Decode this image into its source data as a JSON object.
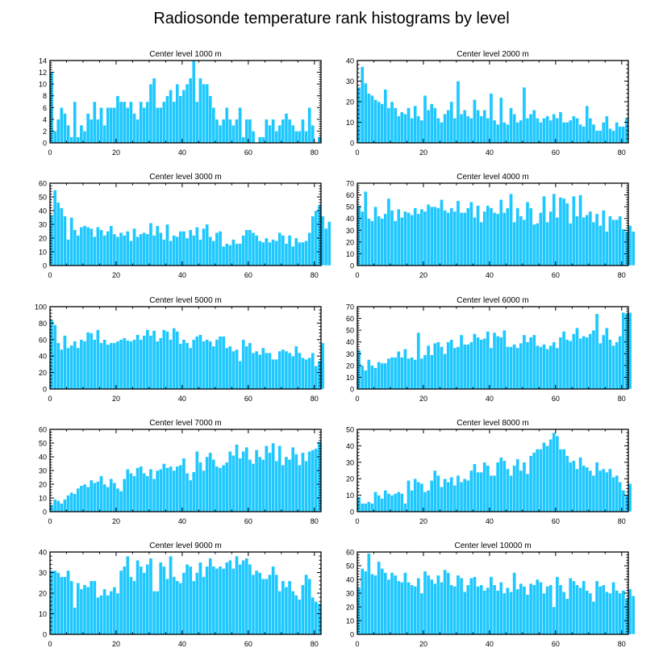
{
  "figure_title": "Radiosonde temperature rank histograms by level",
  "colors": {
    "bar": "#1ec8ff",
    "bar_edge": "#ffffff",
    "axis": "#000000"
  },
  "chart_data": [
    {
      "type": "bar",
      "title": "Center level 1000 m",
      "xlim": [
        0,
        82
      ],
      "xticks": [
        0,
        20,
        40,
        60,
        80
      ],
      "ylim": [
        0,
        14
      ],
      "yticks": [
        0,
        2,
        4,
        6,
        8,
        10,
        12,
        14
      ],
      "values": [
        12,
        2,
        4,
        6,
        5,
        3,
        1,
        7,
        1,
        3,
        2,
        5,
        4,
        7,
        4,
        6,
        3,
        6,
        6,
        6,
        8,
        7,
        7,
        6,
        7,
        5,
        4,
        7,
        6,
        7,
        10,
        11,
        6,
        6,
        7,
        8,
        9,
        7,
        10,
        8,
        9,
        10,
        11,
        14,
        7,
        11,
        10,
        10,
        8,
        6,
        4,
        3,
        4,
        6,
        4,
        3,
        4,
        6,
        1,
        4,
        4,
        2,
        0,
        1,
        1,
        4,
        3,
        4,
        2,
        3,
        4,
        5,
        4,
        3,
        2,
        2,
        4,
        2,
        6,
        3,
        0,
        1
      ]
    },
    {
      "type": "bar",
      "title": "Center level 2000 m",
      "xlim": [
        0,
        82
      ],
      "xticks": [
        0,
        20,
        40,
        60,
        80
      ],
      "ylim": [
        0,
        40
      ],
      "yticks": [
        0,
        10,
        20,
        30,
        40
      ],
      "values": [
        27,
        37,
        29,
        24,
        23,
        21,
        20,
        19,
        26,
        17,
        20,
        17,
        13,
        15,
        14,
        17,
        12,
        18,
        13,
        11,
        23,
        16,
        19,
        17,
        12,
        10,
        14,
        16,
        20,
        12,
        30,
        14,
        16,
        13,
        12,
        21,
        16,
        13,
        16,
        12,
        24,
        11,
        9,
        22,
        10,
        9,
        17,
        14,
        10,
        11,
        27,
        12,
        14,
        16,
        12,
        10,
        12,
        13,
        11,
        14,
        12,
        15,
        10,
        10,
        11,
        13,
        12,
        9,
        8,
        18,
        12,
        9,
        6,
        6,
        10,
        13,
        7,
        6,
        10,
        8,
        8,
        12
      ]
    },
    {
      "type": "bar",
      "title": "Center level 3000 m",
      "xlim": [
        0,
        82
      ],
      "xticks": [
        0,
        20,
        40,
        60,
        80
      ],
      "ylim": [
        0,
        60
      ],
      "yticks": [
        0,
        10,
        20,
        30,
        40,
        50,
        60
      ],
      "values": [
        37,
        55,
        46,
        42,
        36,
        19,
        35,
        26,
        22,
        28,
        29,
        28,
        27,
        21,
        28,
        26,
        22,
        25,
        29,
        23,
        21,
        24,
        22,
        25,
        18,
        27,
        21,
        23,
        24,
        23,
        31,
        22,
        29,
        24,
        19,
        30,
        18,
        22,
        21,
        25,
        25,
        20,
        26,
        22,
        28,
        19,
        27,
        30,
        21,
        18,
        24,
        25,
        14,
        16,
        15,
        19,
        16,
        16,
        22,
        26,
        26,
        24,
        22,
        18,
        17,
        20,
        17,
        19,
        18,
        24,
        22,
        16,
        22,
        14,
        20,
        17,
        17,
        18,
        24,
        36,
        40,
        44,
        36,
        27,
        32
      ]
    },
    {
      "type": "bar",
      "title": "Center level 4000 m",
      "xlim": [
        0,
        82
      ],
      "xticks": [
        0,
        20,
        40,
        60,
        80
      ],
      "ylim": [
        0,
        70
      ],
      "yticks": [
        0,
        10,
        20,
        30,
        40,
        50,
        60,
        70
      ],
      "values": [
        51,
        46,
        63,
        40,
        38,
        50,
        42,
        40,
        44,
        57,
        47,
        38,
        48,
        41,
        46,
        45,
        43,
        49,
        44,
        48,
        46,
        52,
        50,
        50,
        49,
        56,
        47,
        45,
        49,
        46,
        55,
        45,
        45,
        49,
        54,
        41,
        51,
        37,
        46,
        51,
        49,
        45,
        44,
        56,
        45,
        49,
        61,
        37,
        49,
        42,
        39,
        54,
        49,
        35,
        36,
        45,
        59,
        37,
        46,
        61,
        41,
        58,
        57,
        53,
        36,
        59,
        42,
        60,
        41,
        43,
        46,
        37,
        44,
        34,
        47,
        29,
        42,
        39,
        39,
        42,
        31,
        29,
        34,
        29
      ]
    },
    {
      "type": "bar",
      "title": "Center level 5000 m",
      "xlim": [
        0,
        82
      ],
      "xticks": [
        0,
        20,
        40,
        60,
        80
      ],
      "ylim": [
        0,
        100
      ],
      "yticks": [
        0,
        20,
        40,
        60,
        80,
        100
      ],
      "values": [
        84,
        78,
        56,
        48,
        65,
        50,
        53,
        58,
        50,
        60,
        58,
        69,
        68,
        60,
        72,
        56,
        60,
        54,
        56,
        56,
        58,
        60,
        62,
        59,
        58,
        60,
        66,
        60,
        65,
        72,
        65,
        71,
        58,
        62,
        72,
        70,
        60,
        74,
        70,
        55,
        60,
        56,
        50,
        60,
        64,
        66,
        58,
        60,
        58,
        52,
        60,
        64,
        64,
        50,
        52,
        46,
        48,
        34,
        60,
        52,
        56,
        44,
        46,
        42,
        50,
        44,
        44,
        36,
        36,
        46,
        48,
        46,
        44,
        40,
        52,
        44,
        38,
        36,
        38,
        44,
        28,
        34,
        56
      ]
    },
    {
      "type": "bar",
      "title": "Center level 6000 m",
      "xlim": [
        0,
        82
      ],
      "xticks": [
        0,
        20,
        40,
        60,
        80
      ],
      "ylim": [
        0,
        70
      ],
      "yticks": [
        0,
        10,
        20,
        30,
        40,
        50,
        60,
        70
      ],
      "values": [
        33,
        20,
        16,
        25,
        20,
        18,
        23,
        22,
        22,
        26,
        27,
        27,
        32,
        27,
        34,
        26,
        27,
        25,
        48,
        26,
        29,
        37,
        29,
        39,
        40,
        36,
        30,
        40,
        42,
        35,
        36,
        46,
        38,
        38,
        40,
        47,
        44,
        42,
        43,
        49,
        35,
        48,
        45,
        44,
        50,
        36,
        36,
        38,
        35,
        39,
        46,
        40,
        44,
        46,
        37,
        36,
        38,
        34,
        37,
        40,
        35,
        44,
        49,
        42,
        41,
        47,
        52,
        43,
        45,
        44,
        47,
        50,
        64,
        39,
        46,
        52,
        42,
        37,
        40,
        45,
        65,
        64,
        65
      ]
    },
    {
      "type": "bar",
      "title": "Center level 7000 m",
      "xlim": [
        0,
        82
      ],
      "xticks": [
        0,
        20,
        40,
        60,
        80
      ],
      "ylim": [
        0,
        60
      ],
      "yticks": [
        0,
        10,
        20,
        30,
        40,
        50,
        60
      ],
      "values": [
        5,
        9,
        8,
        6,
        9,
        12,
        14,
        13,
        17,
        19,
        20,
        18,
        23,
        21,
        22,
        26,
        20,
        18,
        24,
        21,
        17,
        15,
        24,
        31,
        28,
        26,
        32,
        33,
        28,
        26,
        31,
        24,
        30,
        31,
        35,
        32,
        33,
        30,
        33,
        34,
        39,
        28,
        23,
        29,
        44,
        36,
        30,
        40,
        43,
        38,
        33,
        32,
        34,
        36,
        44,
        41,
        49,
        39,
        44,
        47,
        38,
        35,
        45,
        40,
        38,
        48,
        43,
        50,
        37,
        48,
        34,
        40,
        38,
        47,
        42,
        34,
        43,
        37,
        44,
        45,
        46,
        51
      ]
    },
    {
      "type": "bar",
      "title": "Center level 8000 m",
      "xlim": [
        0,
        82
      ],
      "xticks": [
        0,
        20,
        40,
        60,
        80
      ],
      "ylim": [
        0,
        50
      ],
      "yticks": [
        0,
        10,
        20,
        30,
        40,
        50
      ],
      "values": [
        9,
        5,
        5,
        6,
        5,
        12,
        10,
        8,
        13,
        11,
        10,
        11,
        12,
        11,
        5,
        19,
        13,
        20,
        18,
        17,
        12,
        13,
        19,
        25,
        22,
        15,
        20,
        18,
        21,
        16,
        22,
        18,
        20,
        19,
        25,
        29,
        24,
        24,
        30,
        28,
        22,
        22,
        30,
        33,
        31,
        26,
        22,
        28,
        32,
        25,
        30,
        23,
        34,
        36,
        38,
        38,
        42,
        40,
        44,
        48,
        46,
        38,
        38,
        34,
        30,
        31,
        26,
        33,
        28,
        27,
        25,
        22,
        30,
        25,
        26,
        24,
        26,
        21,
        22,
        18,
        13,
        10,
        17
      ]
    },
    {
      "type": "bar",
      "title": "Center level 9000 m",
      "xlim": [
        0,
        82
      ],
      "xticks": [
        0,
        20,
        40,
        60,
        80
      ],
      "ylim": [
        0,
        40
      ],
      "yticks": [
        0,
        10,
        20,
        30,
        40
      ],
      "values": [
        31,
        31,
        30,
        28,
        28,
        31,
        26,
        13,
        25,
        22,
        24,
        23,
        26,
        26,
        18,
        19,
        22,
        19,
        21,
        23,
        20,
        31,
        33,
        38,
        28,
        26,
        36,
        33,
        30,
        34,
        37,
        21,
        21,
        35,
        33,
        27,
        38,
        28,
        26,
        25,
        30,
        34,
        33,
        26,
        30,
        35,
        28,
        33,
        37,
        33,
        32,
        33,
        32,
        35,
        36,
        32,
        38,
        34,
        36,
        37,
        34,
        29,
        31,
        30,
        27,
        27,
        29,
        33,
        29,
        21,
        26,
        23,
        26,
        21,
        19,
        17,
        24,
        29,
        27,
        18,
        16,
        15
      ]
    },
    {
      "type": "bar",
      "title": "Center level 10000 m",
      "xlim": [
        0,
        82
      ],
      "xticks": [
        0,
        20,
        40,
        60,
        80
      ],
      "ylim": [
        0,
        60
      ],
      "yticks": [
        0,
        10,
        20,
        30,
        40,
        50,
        60
      ],
      "values": [
        34,
        48,
        46,
        59,
        44,
        43,
        53,
        48,
        45,
        40,
        45,
        43,
        39,
        38,
        45,
        38,
        36,
        35,
        41,
        30,
        46,
        43,
        40,
        37,
        43,
        38,
        47,
        45,
        36,
        35,
        43,
        41,
        31,
        36,
        41,
        42,
        35,
        36,
        32,
        34,
        42,
        36,
        32,
        38,
        30,
        34,
        31,
        45,
        33,
        37,
        35,
        29,
        37,
        36,
        40,
        38,
        30,
        35,
        36,
        20,
        42,
        36,
        31,
        26,
        41,
        39,
        36,
        34,
        39,
        32,
        30,
        24,
        39,
        35,
        36,
        31,
        30,
        38,
        32,
        30,
        32,
        26,
        33,
        28
      ]
    }
  ]
}
